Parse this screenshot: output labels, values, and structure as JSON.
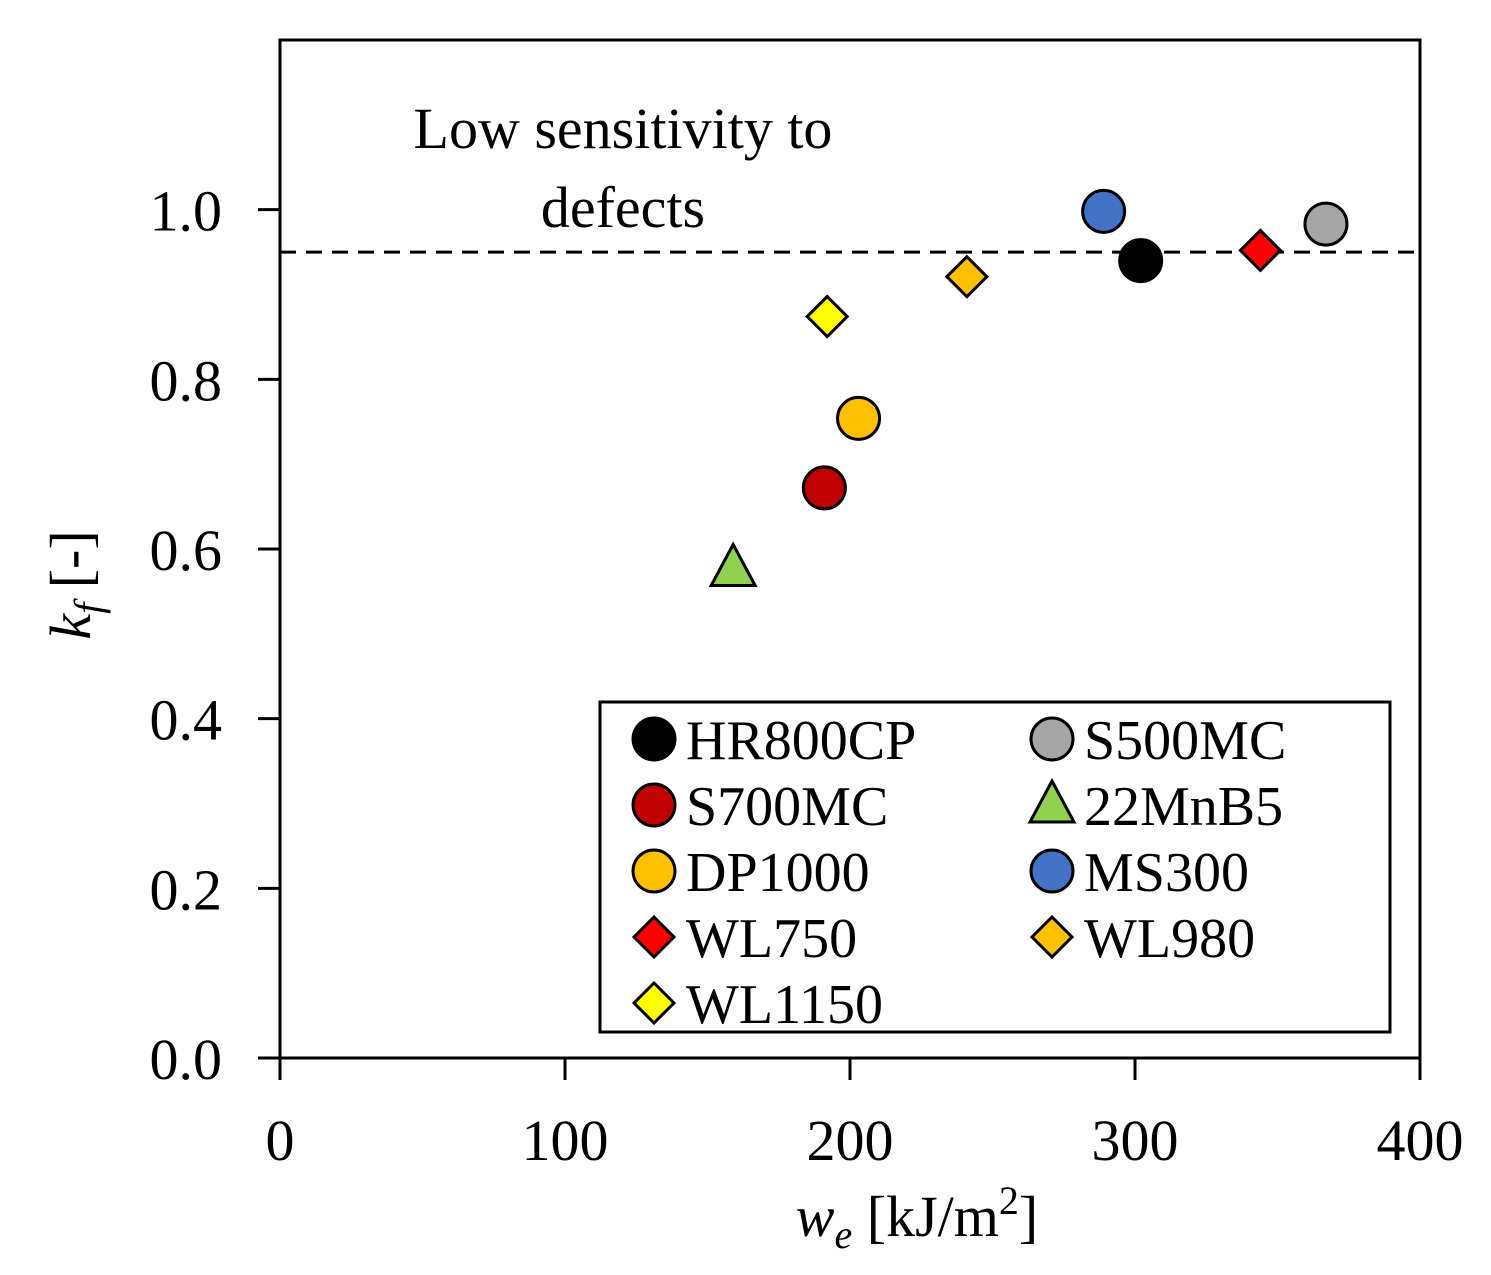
{
  "chart_data": {
    "type": "scatter",
    "title": "",
    "xlabel": {
      "var": "w",
      "sub": "e",
      "unit_pre": " [kJ/m",
      "unit_sup": "2",
      "unit_post": "]"
    },
    "ylabel": {
      "var": "k",
      "sub": "f",
      "unit": " [-]"
    },
    "xlim": [
      0,
      400
    ],
    "ylim": [
      0,
      1.2
    ],
    "xticks": [
      0,
      100,
      200,
      300,
      400
    ],
    "xtick_labels": [
      "0",
      "100",
      "200",
      "300",
      "400"
    ],
    "yticks": [
      0.0,
      0.2,
      0.4,
      0.6,
      0.8,
      1.0
    ],
    "ytick_labels": [
      "0.0",
      "0.2",
      "0.4",
      "0.6",
      "0.8",
      "1.0"
    ],
    "grid": false,
    "reference_line": {
      "y": 0.95,
      "style": "dashed"
    },
    "annotation": {
      "lines": [
        "Low sensitivity to",
        "defects"
      ],
      "anchor_data": [
        120,
        1.09
      ]
    },
    "legend_position": "bottom-right",
    "series": [
      {
        "name": "HR800CP",
        "marker": "circle",
        "color": "#000000",
        "x": [
          302
        ],
        "y": [
          0.94
        ]
      },
      {
        "name": "S500MC",
        "marker": "circle",
        "color": "#a6a6a6",
        "x": [
          367
        ],
        "y": [
          0.983
        ]
      },
      {
        "name": "S700MC",
        "marker": "circle",
        "color": "#c00000",
        "x": [
          191
        ],
        "y": [
          0.672
        ]
      },
      {
        "name": "22MnB5",
        "marker": "triangle",
        "color": "#92d050",
        "x": [
          159
        ],
        "y": [
          0.577
        ]
      },
      {
        "name": "DP1000",
        "marker": "circle",
        "color": "#ffc000",
        "x": [
          203
        ],
        "y": [
          0.754
        ]
      },
      {
        "name": "MS300",
        "marker": "circle",
        "color": "#4472c4",
        "x": [
          289
        ],
        "y": [
          0.998
        ]
      },
      {
        "name": "WL750",
        "marker": "diamond",
        "color": "#ff0000",
        "x": [
          344
        ],
        "y": [
          0.952
        ]
      },
      {
        "name": "WL980",
        "marker": "diamond",
        "color": "#ffc000",
        "x": [
          241
        ],
        "y": [
          0.921
        ]
      },
      {
        "name": "WL1150",
        "marker": "diamond",
        "color": "#ffff00",
        "x": [
          192
        ],
        "y": [
          0.874
        ]
      }
    ]
  }
}
